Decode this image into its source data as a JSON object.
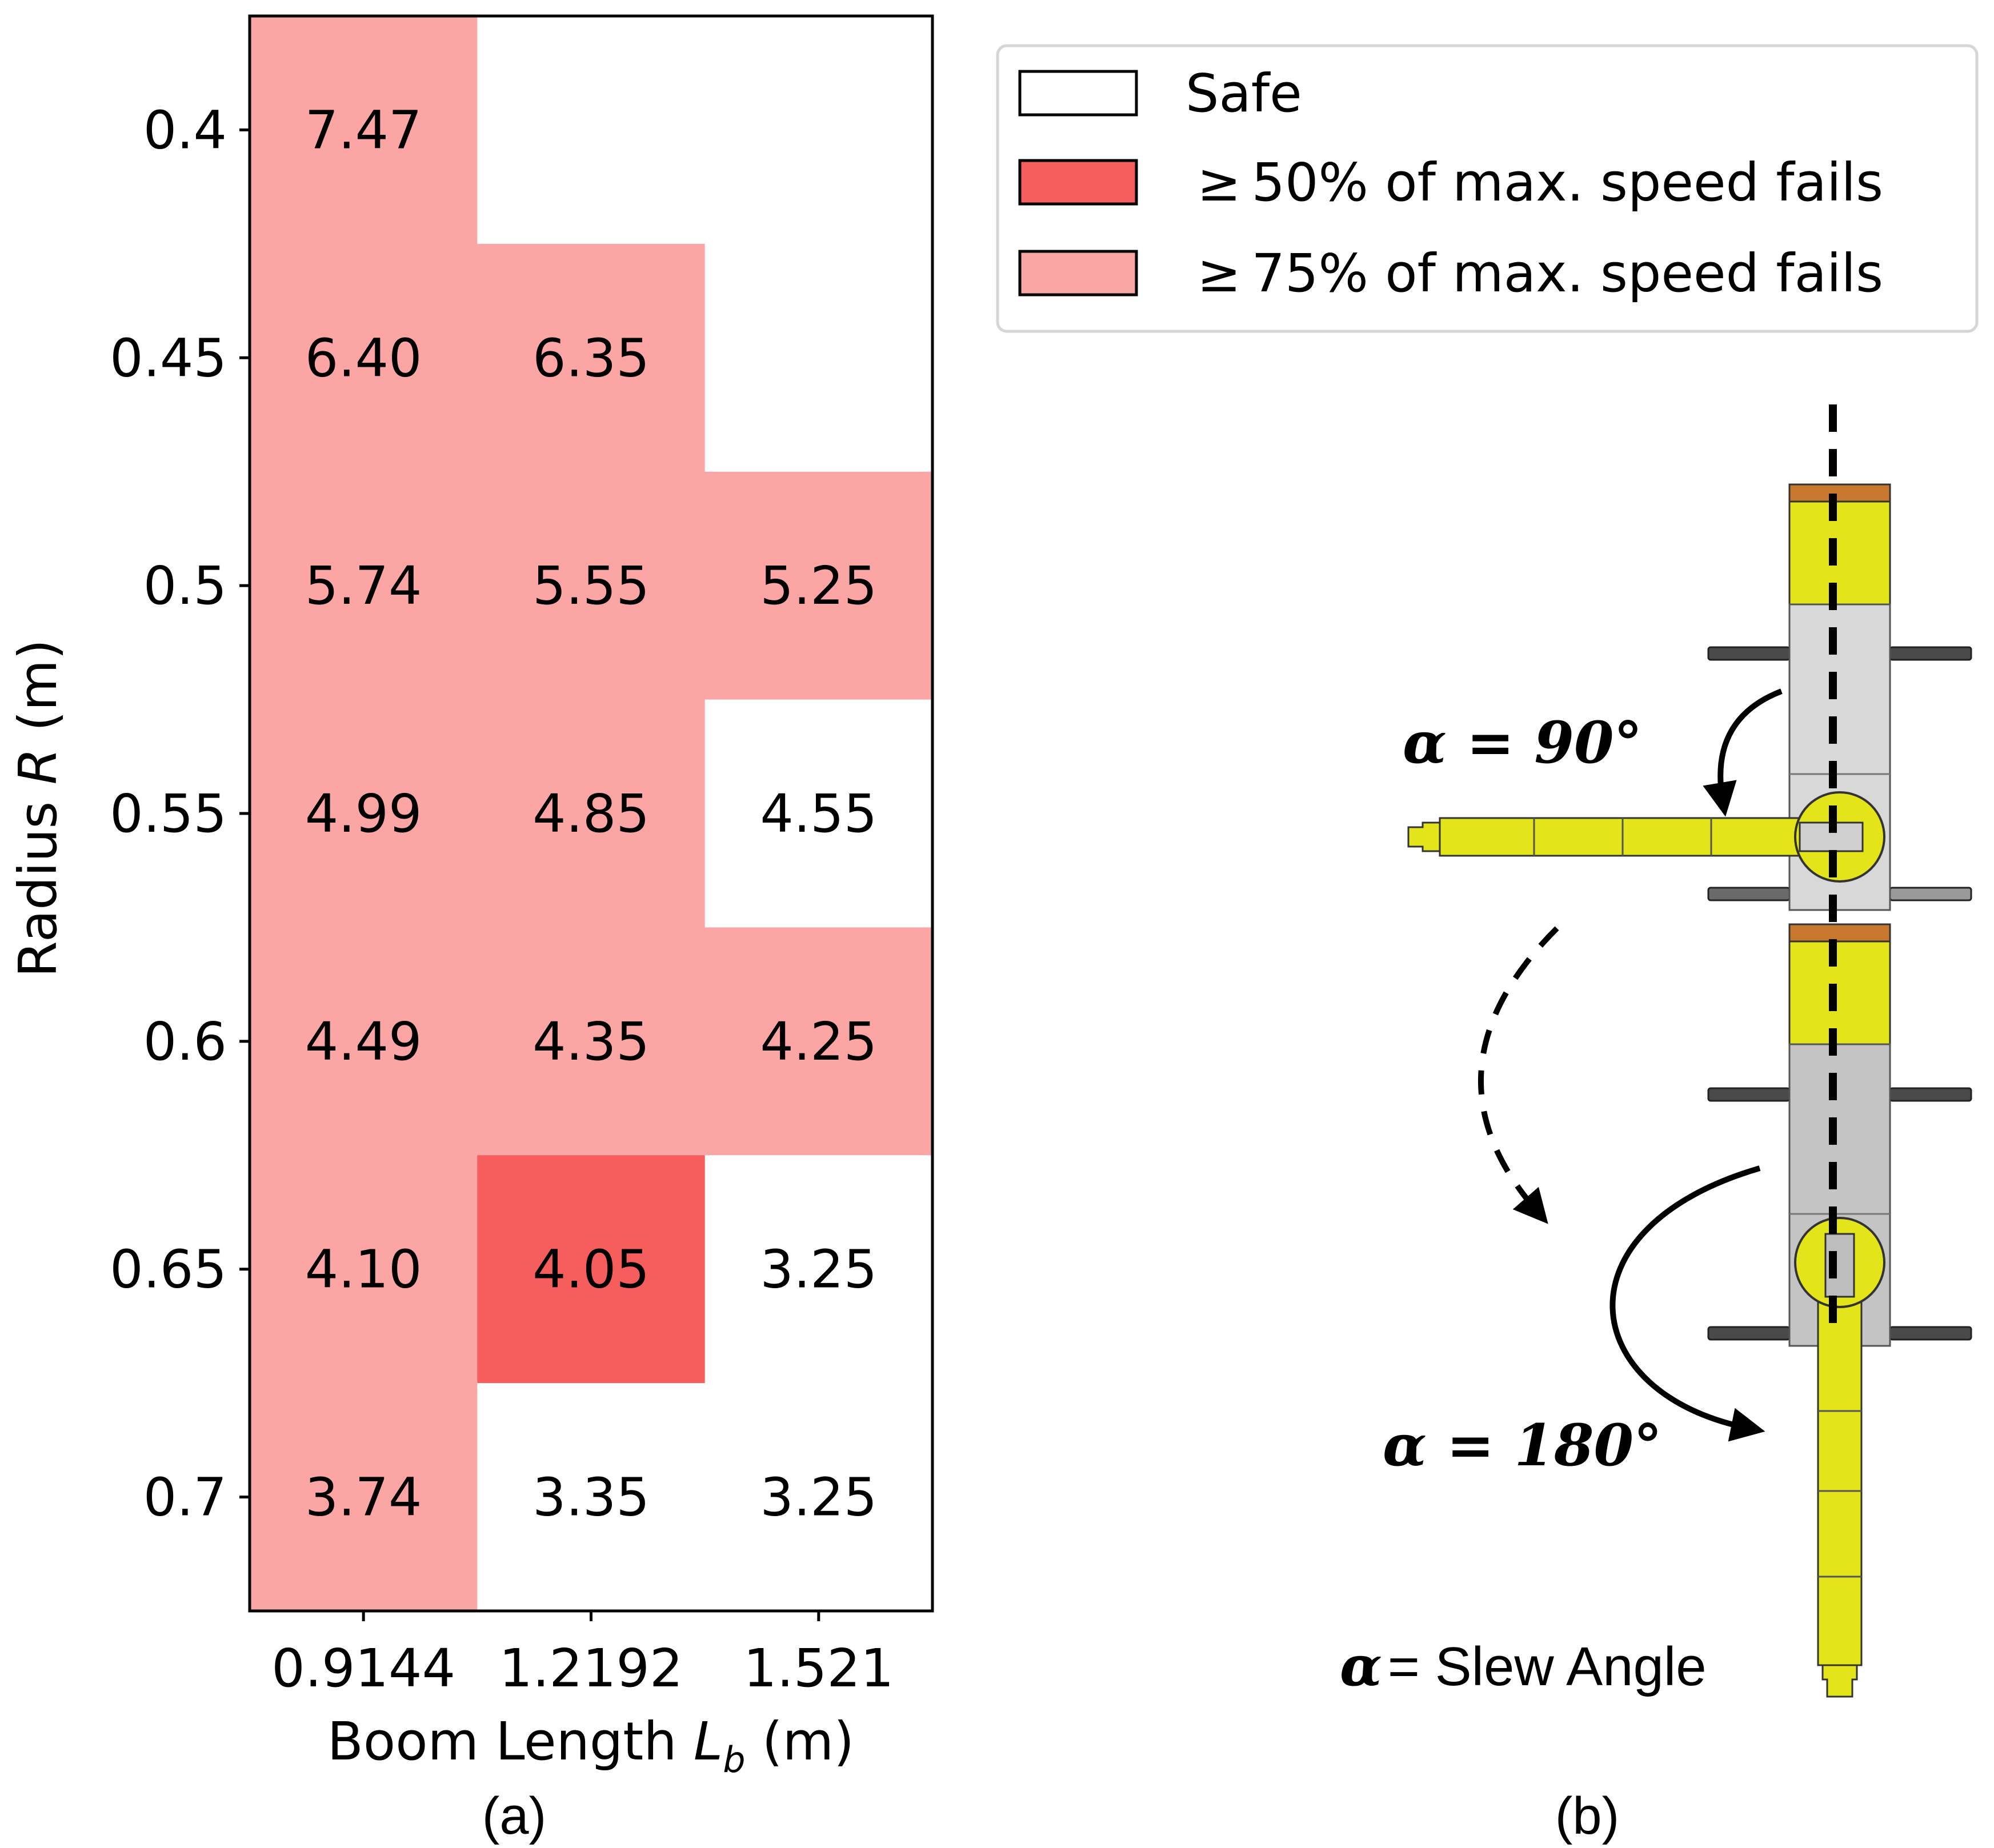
{
  "chart_data": {
    "type": "heatmap",
    "xlabel_prefix": "Boom Length ",
    "xlabel_var": "L",
    "xlabel_sub": "b",
    "xlabel_suffix": " (m)",
    "ylabel_prefix": "Radius ",
    "ylabel_var": "R",
    "ylabel_suffix": " (m)",
    "x_categories": [
      "0.9144",
      "1.2192",
      "1.521"
    ],
    "y_categories": [
      "0.4",
      "0.45",
      "0.5",
      "0.55",
      "0.6",
      "0.65",
      "0.7"
    ],
    "values": [
      [
        "7.47",
        null,
        null
      ],
      [
        "6.40",
        "6.35",
        null
      ],
      [
        "5.74",
        "5.55",
        "5.25"
      ],
      [
        "4.99",
        "4.85",
        "4.55"
      ],
      [
        "4.49",
        "4.35",
        "4.25"
      ],
      [
        "4.10",
        "4.05",
        "3.25"
      ],
      [
        "3.74",
        "3.35",
        "3.25"
      ]
    ],
    "status": [
      [
        "fail75",
        "safe",
        "safe"
      ],
      [
        "fail75",
        "fail75",
        "safe"
      ],
      [
        "fail75",
        "fail75",
        "fail75"
      ],
      [
        "fail75",
        "fail75",
        "safe"
      ],
      [
        "fail75",
        "fail75",
        "fail75"
      ],
      [
        "fail75",
        "fail50",
        "safe"
      ],
      [
        "fail75",
        "safe",
        "safe"
      ]
    ],
    "colors": {
      "safe": "#ffffff",
      "fail50": "#f65d5d",
      "fail75": "#fba5a5"
    },
    "legend": [
      {
        "key": "safe",
        "label": "Safe"
      },
      {
        "key": "fail50",
        "label": "≥ 50% of max. speed fails"
      },
      {
        "key": "fail75",
        "label": "≥ 75% of max. speed fails"
      }
    ],
    "legend_position": "top-right"
  },
  "captions": {
    "a": "(a)",
    "b": "(b)"
  },
  "diagram": {
    "angle90": "α = 90°",
    "angle180": "α = 180°",
    "legend_symbol": "α",
    "legend_text": "= Slew Angle",
    "colors": {
      "yellow": "#e4e41a",
      "gray": "#c4c4c4",
      "orange": "#c8772e",
      "dark": "#3a3a3a"
    }
  }
}
